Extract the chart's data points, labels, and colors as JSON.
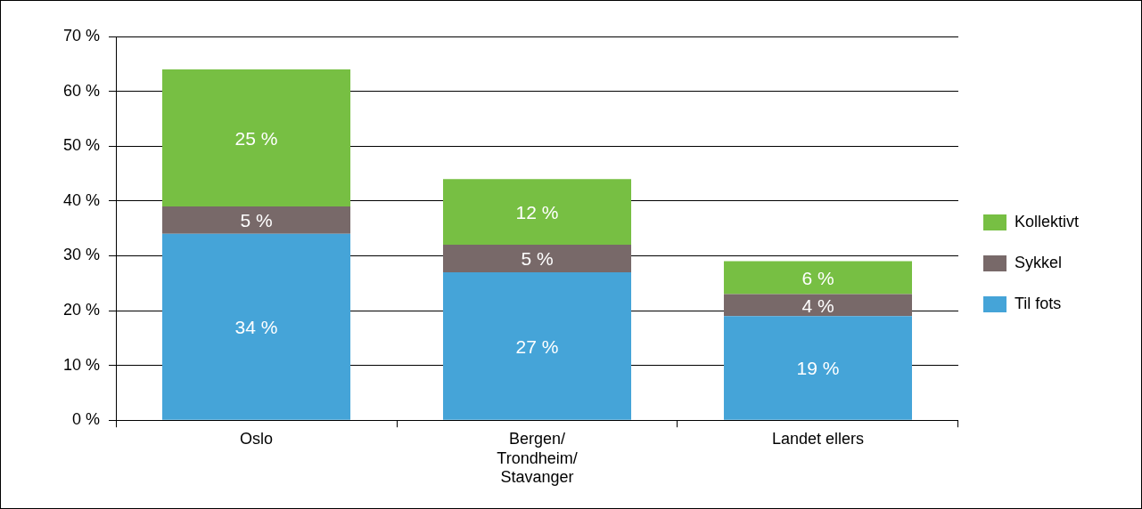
{
  "chart_data": {
    "type": "bar",
    "stacked": true,
    "categories": [
      "Oslo",
      "Bergen/Trondheim/Stavanger",
      "Landet ellers"
    ],
    "series": [
      {
        "name": "Til fots",
        "color": "#45a4d8",
        "values": [
          34,
          27,
          19
        ],
        "value_labels": [
          "34 %",
          "27 %",
          "19 %"
        ]
      },
      {
        "name": "Sykkel",
        "color": "#786969",
        "values": [
          5,
          5,
          4
        ],
        "value_labels": [
          "5 %",
          "5 %",
          "4 %"
        ]
      },
      {
        "name": "Kollektivt",
        "color": "#77bf43",
        "values": [
          25,
          12,
          6
        ],
        "value_labels": [
          "25 %",
          "12 %",
          "6 %"
        ]
      }
    ],
    "ylim": [
      0,
      70
    ],
    "yticks": [
      {
        "value": 0,
        "label": "0 %"
      },
      {
        "value": 10,
        "label": "10 %"
      },
      {
        "value": 20,
        "label": "20 %"
      },
      {
        "value": 30,
        "label": "30 %"
      },
      {
        "value": 40,
        "label": "40 %"
      },
      {
        "value": 50,
        "label": "50 %"
      },
      {
        "value": 60,
        "label": "60 %"
      },
      {
        "value": 70,
        "label": "70 %"
      }
    ],
    "grid": "y",
    "legend": "right"
  }
}
